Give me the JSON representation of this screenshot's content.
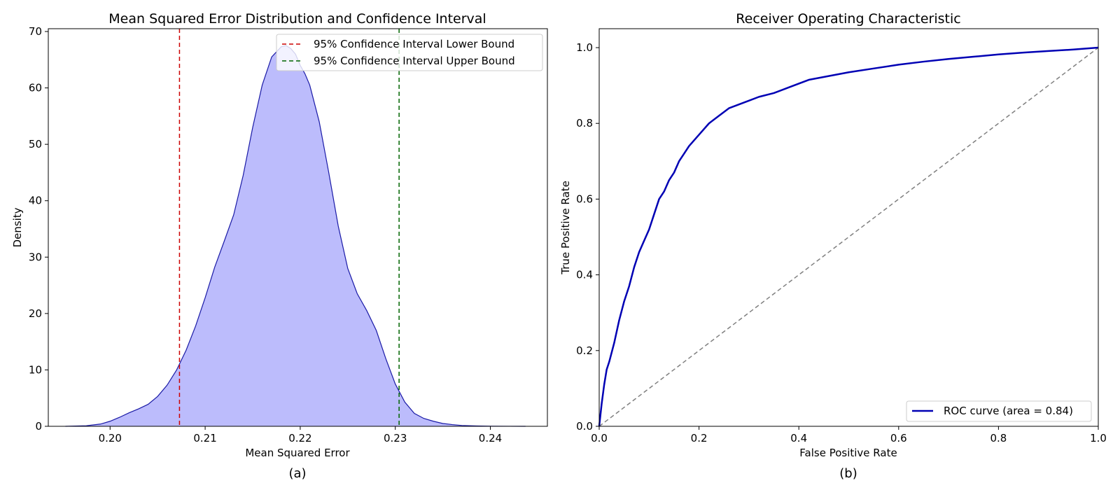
{
  "figure": {
    "panel_a_caption": "(a)",
    "panel_b_caption": "(b)"
  },
  "chart_data": [
    {
      "type": "area",
      "title": "Mean Squared Error Distribution and Confidence Interval",
      "xlabel": "Mean Squared Error",
      "ylabel": "Density",
      "xlim": [
        0.1935,
        0.246
      ],
      "ylim": [
        0,
        70.5
      ],
      "x_ticks": [
        0.2,
        0.21,
        0.22,
        0.23,
        0.24
      ],
      "x_tick_labels": [
        "0.20",
        "0.21",
        "0.22",
        "0.23",
        "0.24"
      ],
      "y_ticks": [
        0,
        10,
        20,
        30,
        40,
        50,
        60,
        70
      ],
      "y_tick_labels": [
        "0",
        "10",
        "20",
        "30",
        "40",
        "50",
        "60",
        "70"
      ],
      "grid": false,
      "legend_position": "upper right",
      "fill_color": "#bcbcfc",
      "line_color": "#1a1aa6",
      "density_curve": {
        "x": [
          0.1953,
          0.1975,
          0.199,
          0.2,
          0.201,
          0.202,
          0.203,
          0.204,
          0.205,
          0.206,
          0.207,
          0.208,
          0.209,
          0.21,
          0.211,
          0.212,
          0.213,
          0.214,
          0.215,
          0.216,
          0.217,
          0.218,
          0.2185,
          0.219,
          0.2195,
          0.22,
          0.2205,
          0.221,
          0.222,
          0.223,
          0.224,
          0.225,
          0.226,
          0.227,
          0.228,
          0.229,
          0.23,
          0.231,
          0.232,
          0.233,
          0.234,
          0.235,
          0.236,
          0.237,
          0.2385,
          0.24,
          0.242,
          0.2437
        ],
        "y": [
          0,
          0.1,
          0.4,
          0.9,
          1.6,
          2.4,
          3.1,
          3.9,
          5.3,
          7.3,
          10.0,
          13.5,
          17.8,
          22.8,
          28.2,
          32.8,
          37.5,
          44.5,
          53.0,
          60.5,
          65.5,
          67.3,
          67.5,
          67.0,
          66.0,
          64.0,
          62.5,
          60.5,
          54.0,
          45.0,
          35.5,
          28.0,
          23.5,
          20.5,
          17.0,
          12.0,
          7.5,
          4.3,
          2.3,
          1.4,
          0.9,
          0.5,
          0.3,
          0.15,
          0.06,
          0.02,
          0.005,
          0
        ]
      },
      "reference_lines": [
        {
          "name": "95% Confidence Interval Lower Bound",
          "x": 0.2073,
          "color": "#cc0000",
          "style": "dashed"
        },
        {
          "name": "95% Confidence Interval Upper Bound",
          "x": 0.2304,
          "color": "#006400",
          "style": "dashed"
        }
      ]
    },
    {
      "type": "line",
      "title": "Receiver Operating Characteristic",
      "xlabel": "False Positive Rate",
      "ylabel": "True Positive Rate",
      "xlim": [
        0.0,
        1.0
      ],
      "ylim": [
        0.0,
        1.05
      ],
      "x_ticks": [
        0.0,
        0.2,
        0.4,
        0.6,
        0.8,
        1.0
      ],
      "x_tick_labels": [
        "0.0",
        "0.2",
        "0.4",
        "0.6",
        "0.8",
        "1.0"
      ],
      "y_ticks": [
        0.0,
        0.2,
        0.4,
        0.6,
        0.8,
        1.0
      ],
      "y_tick_labels": [
        "0.0",
        "0.2",
        "0.4",
        "0.6",
        "0.8",
        "1.0"
      ],
      "grid": false,
      "legend_position": "lower right",
      "series": [
        {
          "name": "ROC curve (area = 0.84)",
          "color": "#0000b4",
          "style": "solid",
          "x": [
            0.0,
            0.005,
            0.01,
            0.015,
            0.02,
            0.03,
            0.04,
            0.05,
            0.06,
            0.07,
            0.08,
            0.09,
            0.1,
            0.11,
            0.12,
            0.13,
            0.14,
            0.15,
            0.16,
            0.17,
            0.18,
            0.19,
            0.2,
            0.22,
            0.24,
            0.26,
            0.28,
            0.3,
            0.32,
            0.35,
            0.38,
            0.42,
            0.46,
            0.5,
            0.55,
            0.6,
            0.65,
            0.7,
            0.75,
            0.8,
            0.85,
            0.9,
            0.95,
            1.0
          ],
          "y": [
            0.0,
            0.06,
            0.11,
            0.15,
            0.17,
            0.22,
            0.28,
            0.33,
            0.37,
            0.42,
            0.46,
            0.49,
            0.52,
            0.56,
            0.6,
            0.62,
            0.65,
            0.67,
            0.7,
            0.72,
            0.74,
            0.755,
            0.77,
            0.8,
            0.82,
            0.84,
            0.85,
            0.86,
            0.87,
            0.88,
            0.895,
            0.915,
            0.925,
            0.935,
            0.945,
            0.955,
            0.963,
            0.97,
            0.976,
            0.982,
            0.987,
            0.991,
            0.995,
            1.0
          ]
        },
        {
          "name": "",
          "color": "#808080",
          "style": "dashed",
          "x": [
            0.0,
            1.0
          ],
          "y": [
            0.0,
            1.0
          ]
        }
      ]
    }
  ]
}
